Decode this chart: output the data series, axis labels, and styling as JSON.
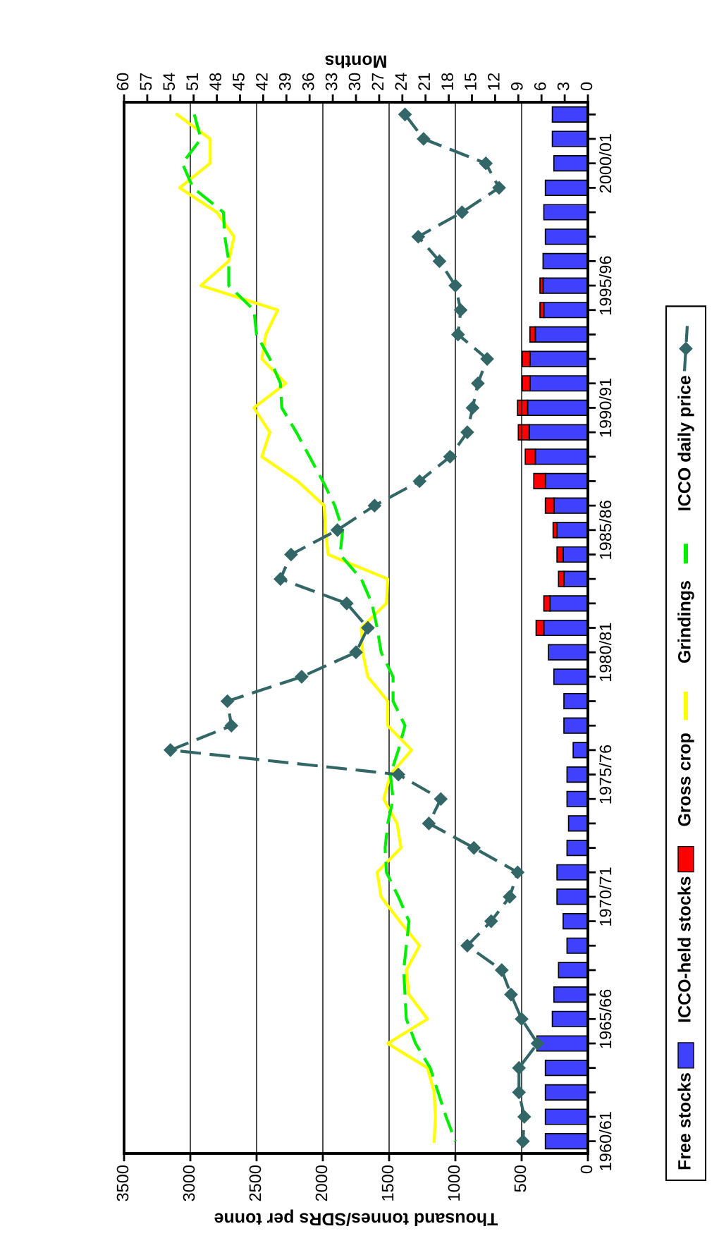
{
  "chart_data": {
    "type": "bar",
    "orientation": "horizontal",
    "stacked": true,
    "xlabel": "Thousand tonnes/SDRs per tonne",
    "x2label": "Months",
    "categories": [
      null,
      null,
      "2000/01",
      null,
      null,
      null,
      null,
      "1995/96",
      null,
      null,
      null,
      null,
      "1990/91",
      null,
      null,
      null,
      null,
      "1985/86",
      null,
      null,
      null,
      null,
      "1980/81",
      null,
      null,
      null,
      null,
      "1975/76",
      null,
      null,
      null,
      null,
      "1970/71",
      null,
      null,
      null,
      null,
      "1965/66",
      null,
      null,
      null,
      null,
      "1960/61"
    ],
    "xlim": [
      3500,
      0
    ],
    "xticks": [
      3500,
      3000,
      2500,
      2000,
      1500,
      1000,
      500,
      0
    ],
    "x2lim": [
      60,
      0
    ],
    "x2ticks": [
      60,
      57,
      54,
      51,
      48,
      45,
      42,
      39,
      36,
      33,
      30,
      27,
      24,
      21,
      18,
      15,
      12,
      9,
      6,
      3,
      0
    ],
    "grid": "x",
    "legend": "right",
    "series": [
      {
        "name": "Free stocks",
        "axis": "x2",
        "color": "#4040ff",
        "values": [
          4.6,
          4.6,
          4.4,
          5.5,
          5.7,
          5.5,
          5.8,
          5.8,
          5.7,
          6.8,
          7.5,
          7.5,
          7.8,
          7.6,
          6.8,
          5.5,
          4.4,
          4.0,
          3.2,
          3.1,
          4.9,
          5.7,
          5.1,
          4.4,
          3.1,
          3.1,
          1.9,
          2.7,
          2.7,
          2.5,
          2.7,
          4.0,
          4.0,
          3.2,
          2.7,
          3.8,
          4.4,
          4.6,
          6.6,
          5.5,
          5.5,
          5.5,
          5.5
        ]
      },
      {
        "name": "ICCO-held stocks",
        "axis": "x2",
        "color": "#ff0000",
        "values": [
          null,
          null,
          null,
          null,
          null,
          null,
          null,
          0.4,
          0.5,
          0.7,
          1.0,
          1.0,
          1.3,
          1.4,
          1.3,
          1.5,
          1.1,
          0.5,
          0.8,
          0.7,
          0.8,
          1.0,
          null,
          null,
          null,
          null,
          null,
          null,
          null,
          null,
          null,
          null,
          null,
          null,
          null,
          null,
          null,
          null,
          null,
          null,
          null,
          null,
          null
        ]
      },
      {
        "name": "Gross crop",
        "type": "line",
        "color": "#ffff00",
        "line_style": "solid",
        "marker": "none",
        "values": [
          3100,
          2850,
          2850,
          3080,
          2800,
          2670,
          2710,
          2920,
          2340,
          2430,
          2460,
          2280,
          2520,
          2400,
          2460,
          2190,
          1990,
          1980,
          1960,
          1510,
          1520,
          1710,
          1700,
          1660,
          1510,
          1510,
          1330,
          1490,
          1540,
          1440,
          1410,
          1590,
          1560,
          1420,
          1270,
          1370,
          1350,
          1210,
          1510,
          1210,
          1160,
          1150,
          1160
        ]
      },
      {
        "name": "Grindings",
        "type": "line",
        "color": "#00ee00",
        "line_style": "dashed",
        "marker": "none",
        "values": [
          2970,
          2920,
          3060,
          2980,
          2750,
          2740,
          2710,
          2710,
          2520,
          2500,
          2400,
          2320,
          2310,
          2200,
          2100,
          2000,
          1910,
          1850,
          1870,
          1710,
          1630,
          1590,
          1560,
          1470,
          1470,
          1380,
          1430,
          1490,
          1470,
          1510,
          1530,
          1520,
          1430,
          1350,
          1370,
          1390,
          1380,
          1370,
          1300,
          1190,
          1130,
          1070,
          1000
        ]
      },
      {
        "name": "ICCO daily price",
        "type": "line",
        "color": "#336666",
        "line_style": "dashed",
        "marker": "diamond",
        "values": [
          1380,
          1240,
          770,
          670,
          950,
          1280,
          1120,
          1000,
          960,
          980,
          760,
          830,
          870,
          910,
          1040,
          1270,
          1610,
          1890,
          2240,
          2320,
          1820,
          1660,
          1750,
          2160,
          2720,
          2690,
          3150,
          1430,
          1110,
          1200,
          860,
          530,
          590,
          730,
          910,
          650,
          580,
          500,
          380,
          520,
          520,
          480,
          490
        ]
      }
    ]
  }
}
